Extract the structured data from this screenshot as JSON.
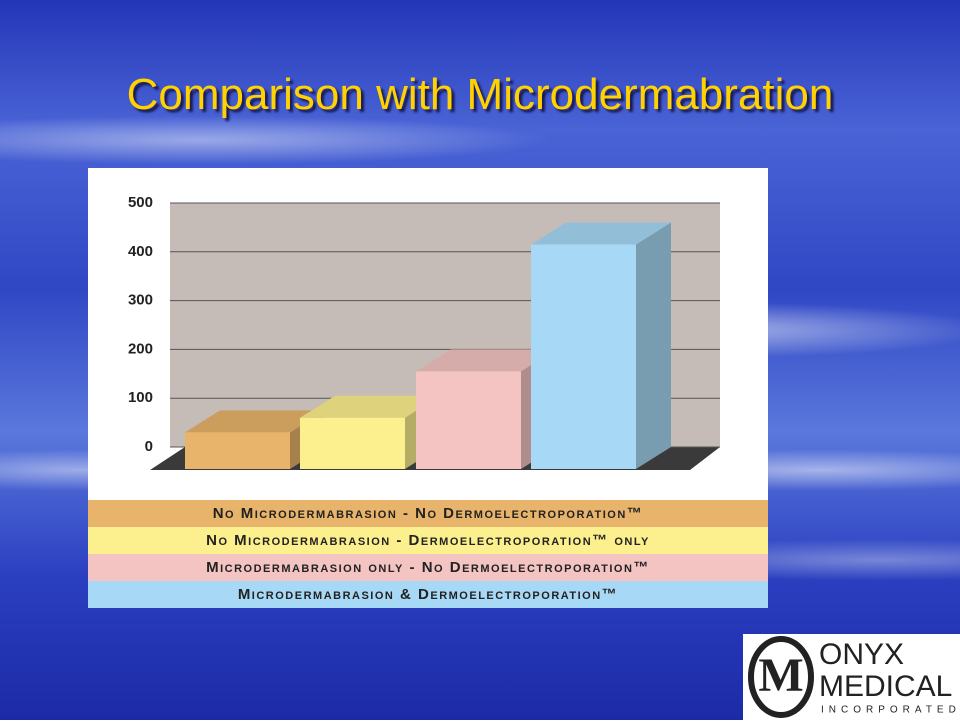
{
  "chart_data": {
    "type": "bar3d",
    "title": "Comparison with Microdermabration",
    "categories": [
      "No Microdermabrasion - No Dermoelectroporation™",
      "No Microdermabrasion - Dermoelectroporation™ only",
      "Microdermabrasion only - No Dermoelectroporation™",
      "Microdermabrasion & Dermoelectroporation™"
    ],
    "values": [
      75,
      105,
      200,
      460
    ],
    "colors": [
      "#e8b36a",
      "#fcef8e",
      "#f3c4c2",
      "#a7d8f5"
    ],
    "ylim": [
      0,
      500
    ],
    "yticks": [
      0,
      100,
      200,
      300,
      400,
      500
    ],
    "grid": true
  },
  "logo": {
    "mark": "M",
    "line1": "ONYX",
    "line2": "MEDICAL",
    "line3": "INCORPORATED"
  }
}
